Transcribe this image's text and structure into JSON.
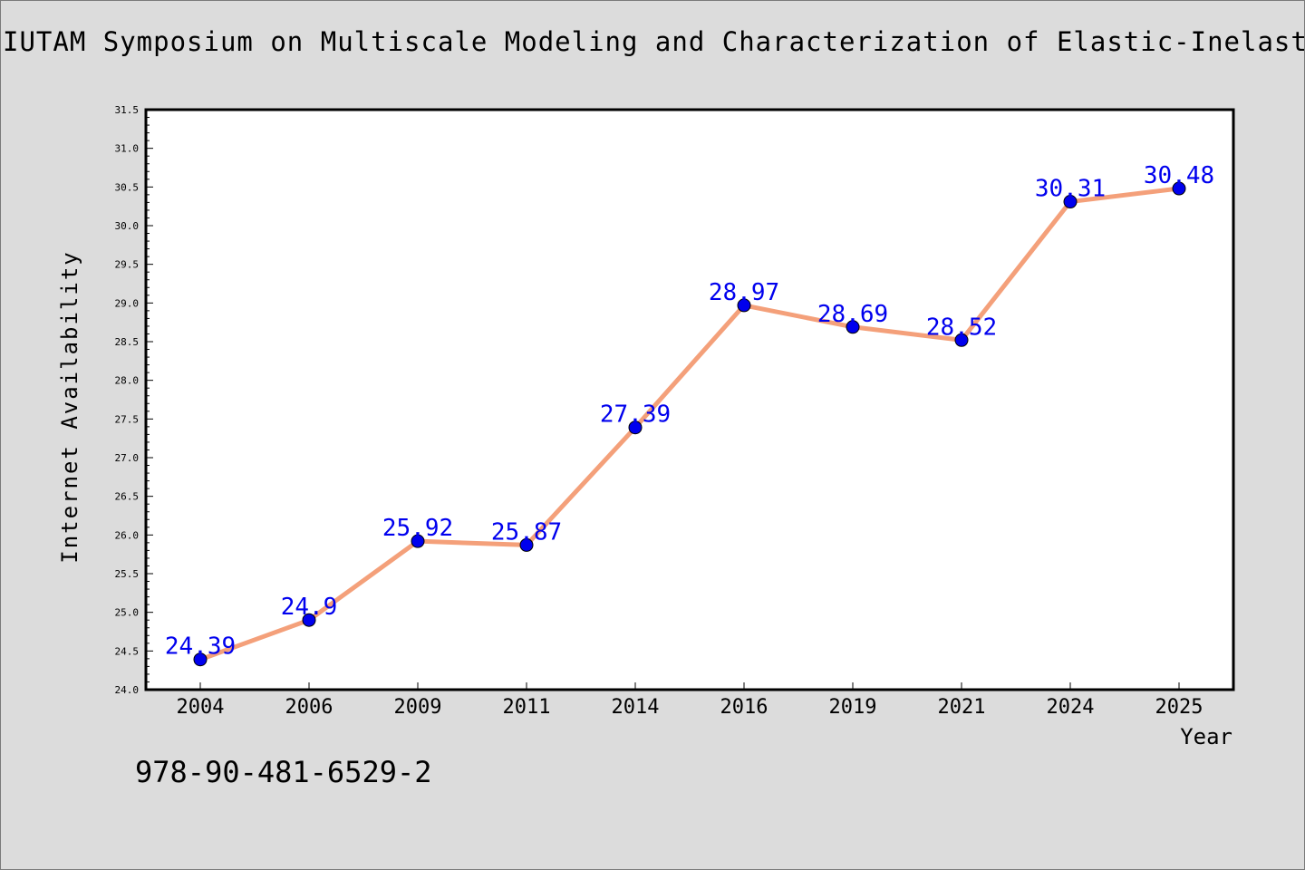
{
  "chart_data": {
    "type": "line",
    "title": "IUTAM Symposium on Multiscale Modeling and Characterization of Elastic-Inelastic",
    "xlabel": "Year",
    "ylabel": "Internet Availability",
    "categories": [
      "2004",
      "2006",
      "2009",
      "2011",
      "2014",
      "2016",
      "2019",
      "2021",
      "2024",
      "2025"
    ],
    "values": [
      24.39,
      24.9,
      25.92,
      25.87,
      27.39,
      28.97,
      28.69,
      28.52,
      30.31,
      30.48
    ],
    "value_labels": [
      "24.39",
      "24.9",
      "25.92",
      "25.87",
      "27.39",
      "28.97",
      "28.69",
      "28.52",
      "30.31",
      "30.48"
    ],
    "ylim": [
      24.0,
      31.5
    ],
    "y_ticks": [
      "24.0",
      "24.5",
      "25.0",
      "25.5",
      "26.0",
      "26.5",
      "27.0",
      "27.5",
      "28.0",
      "28.5",
      "29.0",
      "29.5",
      "30.0",
      "30.5",
      "31.0",
      "31.5"
    ],
    "grid": false,
    "legend": "none",
    "line_color": "#f4a07a",
    "marker_color": "#0000ee",
    "label_color": "#0000ee",
    "background_color": "#dcdcdc",
    "plot_background_color": "#ffffff"
  },
  "footer": {
    "isbn": "978-90-481-6529-2"
  }
}
